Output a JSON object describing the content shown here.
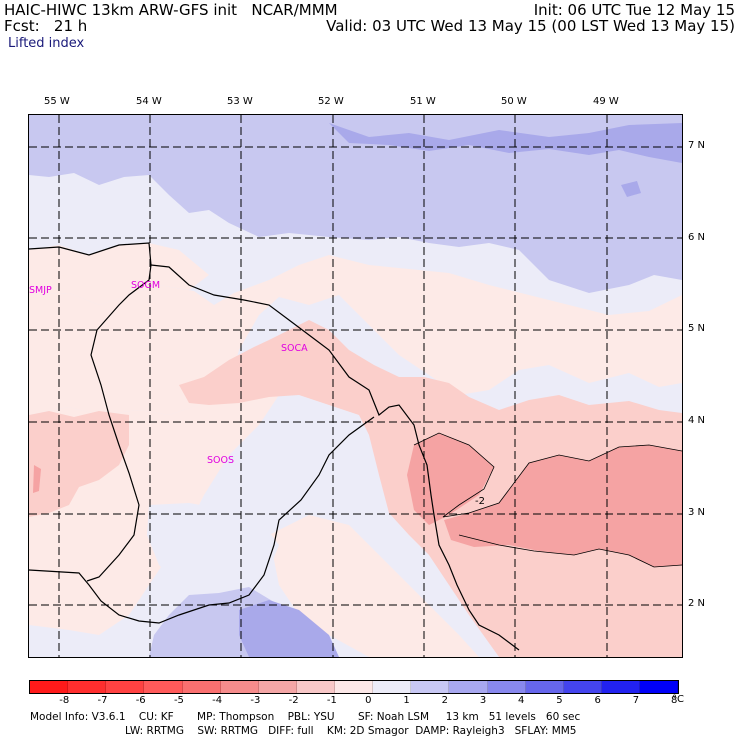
{
  "header": {
    "left_line1": "HAIC-HIWC 13km ARW-GFS init   NCAR/MMM",
    "left_line2": "Fcst:   21 h",
    "field_name": "Lifted index",
    "right_line1": "Init: 06 UTC Tue 12 May 15",
    "right_line2": "Valid: 03 UTC Wed 13 May 15 (00 LST Wed 13 May 15)"
  },
  "map": {
    "lon_labels": [
      "55 W",
      "54 W",
      "53 W",
      "52 W",
      "51 W",
      "50 W",
      "49 W"
    ],
    "lat_labels": [
      "7 N",
      "6 N",
      "5 N",
      "4 N",
      "3 N",
      "2 N"
    ],
    "stations": [
      "SMJP",
      "SOGM",
      "SOCA",
      "SOOS"
    ],
    "contour_label": "-2",
    "colors": {
      "neg_1": "#fdeae7",
      "neg_2": "#fbcfcb",
      "neg_3": "#f5a3a3",
      "pos_1": "#ececf8",
      "pos_2": "#c8c8f0",
      "pos_3": "#a9a9ea"
    }
  },
  "colorbar": {
    "tick_labels": [
      "-8",
      "-7",
      "-6",
      "-5",
      "-4",
      "-3",
      "-2",
      "-1",
      "0",
      "1",
      "2",
      "3",
      "4",
      "5",
      "6",
      "7",
      "8"
    ],
    "unit": "°C",
    "colors": [
      "#ff1a1a",
      "#ff2e2e",
      "#ff4242",
      "#ff5a5a",
      "#fa7070",
      "#f68c8c",
      "#f4a6a6",
      "#f8c8c8",
      "#fce8e8",
      "#ececf8",
      "#c8c8f4",
      "#a8a8f0",
      "#8888ee",
      "#6666ec",
      "#4444ee",
      "#2222f0",
      "#0000f8"
    ]
  },
  "footer": {
    "line1": "Model Info: V3.6.1    CU: KF       MP: Thompson    PBL: YSU       SF: Noah LSM     13 km   51 levels   60 sec",
    "line2": "LW: RRTMG    SW: RRTMG   DIFF: full    KM: 2D Smagor  DAMP: Rayleigh3   SFLAY: MM5"
  }
}
